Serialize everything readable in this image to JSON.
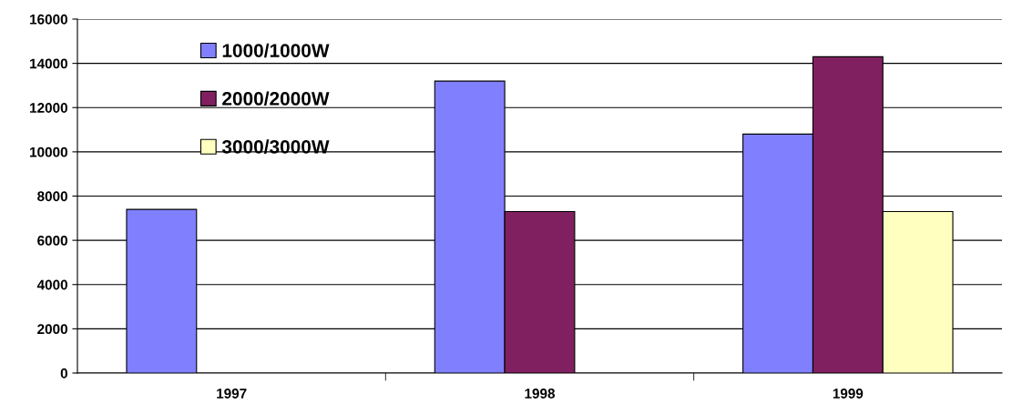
{
  "chart_data": {
    "type": "bar",
    "categories": [
      "1997",
      "1998",
      "1999"
    ],
    "series": [
      {
        "name": "1000/1000W",
        "color": "#8080ff",
        "values": [
          7400,
          13200,
          10800
        ]
      },
      {
        "name": "2000/2000W",
        "color": "#802060",
        "values": [
          null,
          7300,
          14300
        ]
      },
      {
        "name": "3000/3000W",
        "color": "#ffffc0",
        "values": [
          null,
          null,
          7300
        ]
      }
    ],
    "ylim": [
      0,
      16000
    ],
    "yticks": [
      0,
      2000,
      4000,
      6000,
      8000,
      10000,
      12000,
      14000,
      16000
    ],
    "grid": "y",
    "legend": "top left"
  }
}
